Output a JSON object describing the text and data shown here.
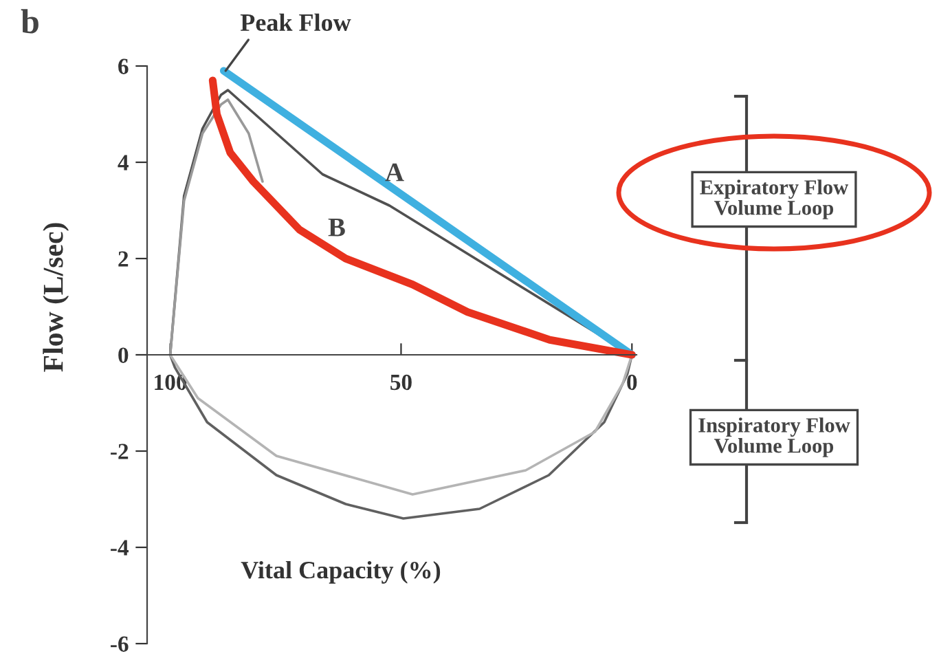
{
  "chart_data": {
    "type": "line",
    "ylabel": "Flow (L/sec)",
    "xlabel": "Vital Capacity (%)",
    "xlim": [
      105,
      -1
    ],
    "ylim": [
      -6,
      6
    ],
    "xticks": [
      100,
      50,
      0
    ],
    "yticks": [
      -6,
      -4,
      -2,
      0,
      2,
      4,
      6
    ],
    "grid": false,
    "legend": false,
    "marker": "none",
    "line_style": "solid",
    "annotations": [
      "b",
      {
        "text": "Peak Flow",
        "x": 88,
        "y": 5.9
      },
      "A",
      "B",
      "Expiratory Flow\nVolume Loop",
      "Inspiratory Flow\nVolume Loop"
    ],
    "series": [
      {
        "color": "#505050",
        "x": [
          100,
          97,
          93,
          89,
          87.5,
          67,
          52.5,
          35.6,
          0
        ],
        "values": [
          0,
          3.3,
          4.7,
          5.4,
          5.5,
          3.75,
          3.1,
          2.1,
          0
        ]
      },
      {
        "color": "#999999",
        "x": [
          100,
          97,
          93,
          89,
          87.5,
          83,
          80
        ],
        "values": [
          0,
          3.2,
          4.6,
          5.2,
          5.3,
          4.6,
          3.6
        ]
      },
      {
        "color": "#606060",
        "x": [
          100,
          99,
          92,
          77,
          62,
          49.5,
          33,
          18,
          6,
          1,
          0
        ],
        "values": [
          0,
          -0.26,
          -1.4,
          -2.5,
          -3.1,
          -3.4,
          -3.2,
          -2.5,
          -1.4,
          -0.4,
          0
        ]
      },
      {
        "color": "#b4b4b4",
        "x": [
          100,
          94,
          77,
          47.5,
          23,
          8,
          2,
          0
        ],
        "values": [
          0,
          -0.9,
          -2.1,
          -2.9,
          -2.4,
          -1.6,
          -0.6,
          0
        ]
      },
      {
        "color": "#3fb0e0",
        "x": [
          88.4,
          0
        ],
        "values": [
          5.9,
          0
        ]
      },
      {
        "color": "#e8321e",
        "x": [
          90.8,
          89.9,
          87,
          82,
          72,
          62,
          47.5,
          35.6,
          17.8,
          0
        ],
        "values": [
          5.7,
          5.0,
          4.2,
          3.6,
          2.6,
          2.0,
          1.46,
          0.89,
          0.31,
          0
        ]
      }
    ]
  }
}
